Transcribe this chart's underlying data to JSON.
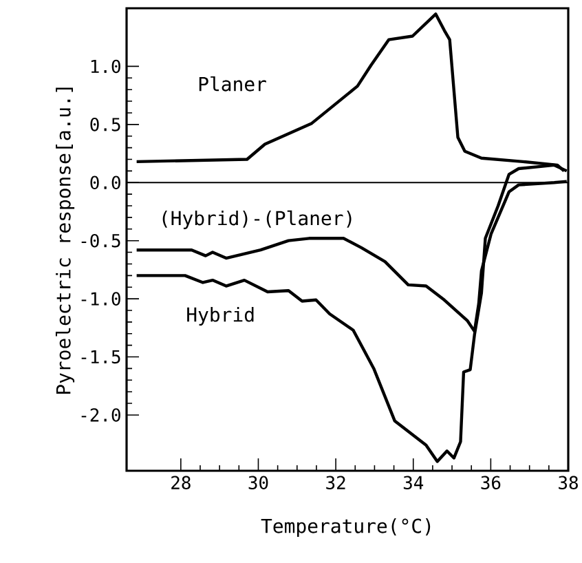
{
  "chart_data": {
    "type": "line",
    "xlabel": "Temperature(°C)",
    "ylabel": "Pyroelectric response[a.u.]",
    "xlim": [
      26.6,
      38
    ],
    "ylim": [
      -2.48,
      1.5
    ],
    "xticks": [
      28,
      30,
      32,
      34,
      36,
      38
    ],
    "yticks": [
      {
        "value": -2,
        "label": "-2.0"
      },
      {
        "value": -1.5,
        "label": "-1.5"
      },
      {
        "value": -1,
        "label": "-1.0"
      },
      {
        "value": -0.5,
        "label": "-0.5"
      },
      {
        "value": 0,
        "label": "0.0"
      },
      {
        "value": 0.5,
        "label": "0.5"
      },
      {
        "value": 1,
        "label": "1.0"
      }
    ],
    "ref_lines": [
      {
        "axis": "y",
        "value": 0,
        "color": "#000000"
      }
    ],
    "grid": false,
    "marker": "none",
    "line_style": "solid",
    "series": [
      {
        "name": "Planer",
        "color": "#000000",
        "x": [
          26.86,
          29.71,
          30.17,
          31.38,
          32.56,
          32.91,
          33.37,
          33.98,
          34.58,
          34.8,
          34.94,
          35.15,
          35.33,
          35.76,
          36.83,
          37.72,
          37.89
        ],
        "values": [
          0.18,
          0.2,
          0.33,
          0.51,
          0.83,
          1.01,
          1.23,
          1.26,
          1.45,
          1.31,
          1.23,
          0.39,
          0.27,
          0.21,
          0.18,
          0.15,
          0.1
        ]
      },
      {
        "name": "(Hybrid)-(Planer)",
        "color": "#000000",
        "x": [
          26.86,
          28.28,
          28.64,
          28.82,
          29.17,
          30.06,
          30.78,
          31.31,
          32.2,
          32.66,
          33.27,
          33.87,
          34.33,
          34.8,
          35.4,
          35.58,
          35.69,
          35.76,
          36.01,
          36.47,
          36.72,
          37.64,
          37.96
        ],
        "values": [
          -0.58,
          -0.58,
          -0.63,
          -0.6,
          -0.65,
          -0.58,
          -0.5,
          -0.48,
          -0.48,
          -0.56,
          -0.68,
          -0.88,
          -0.89,
          -1.01,
          -1.19,
          -1.28,
          -1.04,
          -0.76,
          -0.44,
          -0.08,
          -0.02,
          0.0,
          0.01
        ]
      },
      {
        "name": "Hybrid",
        "color": "#000000",
        "x": [
          26.86,
          28.11,
          28.57,
          28.82,
          29.17,
          29.64,
          30.24,
          30.78,
          31.13,
          31.49,
          31.84,
          32.45,
          32.98,
          33.52,
          34.33,
          34.62,
          34.87,
          35.05,
          35.22,
          35.3,
          35.47,
          35.58,
          35.76,
          35.86,
          36.19,
          36.47,
          36.72,
          37.64,
          37.96
        ],
        "values": [
          -0.8,
          -0.8,
          -0.86,
          -0.84,
          -0.89,
          -0.84,
          -0.94,
          -0.93,
          -1.02,
          -1.01,
          -1.13,
          -1.27,
          -1.6,
          -2.05,
          -2.26,
          -2.4,
          -2.31,
          -2.37,
          -2.23,
          -1.63,
          -1.61,
          -1.31,
          -0.95,
          -0.48,
          -0.2,
          0.07,
          0.12,
          0.15,
          0.1
        ]
      }
    ]
  }
}
